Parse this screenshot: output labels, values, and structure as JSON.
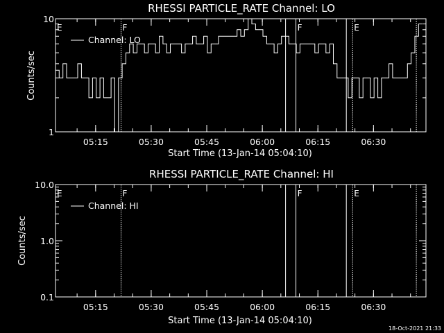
{
  "colors": {
    "background": "#000000",
    "foreground": "#ffffff"
  },
  "stamp": "18-Oct-2021 21:33",
  "chart_data": [
    {
      "type": "line",
      "title": "RHESSI PARTICLE_RATE Channel: LO",
      "xlabel": "Start Time (13-Jan-14 05:04:10)",
      "ylabel": "Counts/sec",
      "x_unit": "minutes after 05:04:10",
      "xlim": [
        0,
        100
      ],
      "ylim": [
        1,
        10
      ],
      "yscale": "log",
      "xticks": [
        {
          "label": "05:15",
          "x": 10.83
        },
        {
          "label": "05:30",
          "x": 25.83
        },
        {
          "label": "05:45",
          "x": 40.83
        },
        {
          "label": "06:00",
          "x": 55.83
        },
        {
          "label": "06:15",
          "x": 70.83
        },
        {
          "label": "06:30",
          "x": 85.83
        }
      ],
      "yticks": [
        {
          "label": "1",
          "v": 1
        },
        {
          "label": "10",
          "v": 10
        }
      ],
      "legend": "top-left",
      "series": [
        {
          "name": "Channel: LO",
          "x": [
            0,
            1,
            2,
            3,
            4,
            5,
            6,
            7,
            8,
            9,
            10,
            11,
            12,
            13,
            14,
            15,
            16,
            17,
            18,
            19,
            20,
            21,
            22,
            23,
            24,
            25,
            26,
            27,
            28,
            29,
            30,
            31,
            32,
            33,
            34,
            35,
            36,
            37,
            38,
            39,
            40,
            41,
            42,
            43,
            44,
            45,
            46,
            47,
            48,
            49,
            50,
            51,
            52,
            53,
            54,
            55,
            56,
            57,
            58,
            59,
            60,
            61,
            62,
            63,
            64,
            65,
            66,
            67,
            68,
            69,
            70,
            71,
            72,
            73,
            74,
            75,
            76,
            77,
            78,
            79,
            80,
            81,
            82,
            83,
            84,
            85,
            86,
            87,
            88,
            89,
            90,
            91,
            92,
            93,
            94,
            95,
            96,
            97,
            98
          ],
          "y": [
            3.5,
            3,
            4,
            3,
            3,
            3,
            4,
            3,
            3,
            2,
            3,
            2,
            3,
            2,
            2,
            3,
            1,
            3,
            4,
            5,
            6,
            5,
            6,
            6,
            5,
            6,
            6,
            5,
            7,
            6,
            5,
            6,
            6,
            6,
            5,
            6,
            6,
            7,
            6,
            6,
            7,
            5,
            6,
            6,
            7,
            7,
            7,
            7,
            7,
            8,
            7,
            8,
            10,
            9,
            8,
            8,
            7,
            6,
            6,
            5,
            6,
            7,
            7,
            6,
            6,
            5,
            6,
            6,
            6,
            6,
            5,
            6,
            6,
            5,
            6,
            4,
            3,
            3,
            3,
            2,
            3,
            3,
            2,
            3,
            3,
            2,
            3,
            2,
            3,
            3,
            4,
            3,
            3,
            3,
            3,
            4,
            5,
            7,
            9
          ]
        }
      ],
      "markers": [
        {
          "label": "E",
          "x": 0,
          "style": "none"
        },
        {
          "label": "F",
          "x": 17.7,
          "style": "dotted"
        },
        {
          "label": "",
          "x": 62.1,
          "style": "solid"
        },
        {
          "label": "F",
          "x": 64.9,
          "style": "solid"
        },
        {
          "label": "",
          "x": 78.5,
          "style": "solid"
        },
        {
          "label": "E",
          "x": 80.2,
          "style": "dotted"
        },
        {
          "label": "",
          "x": 97.4,
          "style": "dotted"
        }
      ]
    },
    {
      "type": "line",
      "title": "RHESSI PARTICLE_RATE Channel: HI",
      "xlabel": "Start Time (13-Jan-14 05:04:10)",
      "ylabel": "Counts/sec",
      "x_unit": "minutes after 05:04:10",
      "xlim": [
        0,
        100
      ],
      "ylim": [
        0.1,
        10
      ],
      "yscale": "log",
      "xticks": [
        {
          "label": "05:15",
          "x": 10.83
        },
        {
          "label": "05:30",
          "x": 25.83
        },
        {
          "label": "05:45",
          "x": 40.83
        },
        {
          "label": "06:00",
          "x": 55.83
        },
        {
          "label": "06:15",
          "x": 70.83
        },
        {
          "label": "06:30",
          "x": 85.83
        }
      ],
      "yticks": [
        {
          "label": "0.1",
          "v": 0.1
        },
        {
          "label": "1.0",
          "v": 1
        },
        {
          "label": "10.0",
          "v": 10
        }
      ],
      "legend": "top-left",
      "series": [
        {
          "name": "Channel: HI",
          "x": [],
          "y": []
        }
      ],
      "markers": [
        {
          "label": "E",
          "x": 0,
          "style": "none"
        },
        {
          "label": "F",
          "x": 17.7,
          "style": "dotted"
        },
        {
          "label": "",
          "x": 62.1,
          "style": "solid"
        },
        {
          "label": "F",
          "x": 64.9,
          "style": "solid"
        },
        {
          "label": "",
          "x": 78.5,
          "style": "solid"
        },
        {
          "label": "E",
          "x": 80.2,
          "style": "dotted"
        },
        {
          "label": "",
          "x": 97.4,
          "style": "dotted"
        }
      ]
    }
  ]
}
